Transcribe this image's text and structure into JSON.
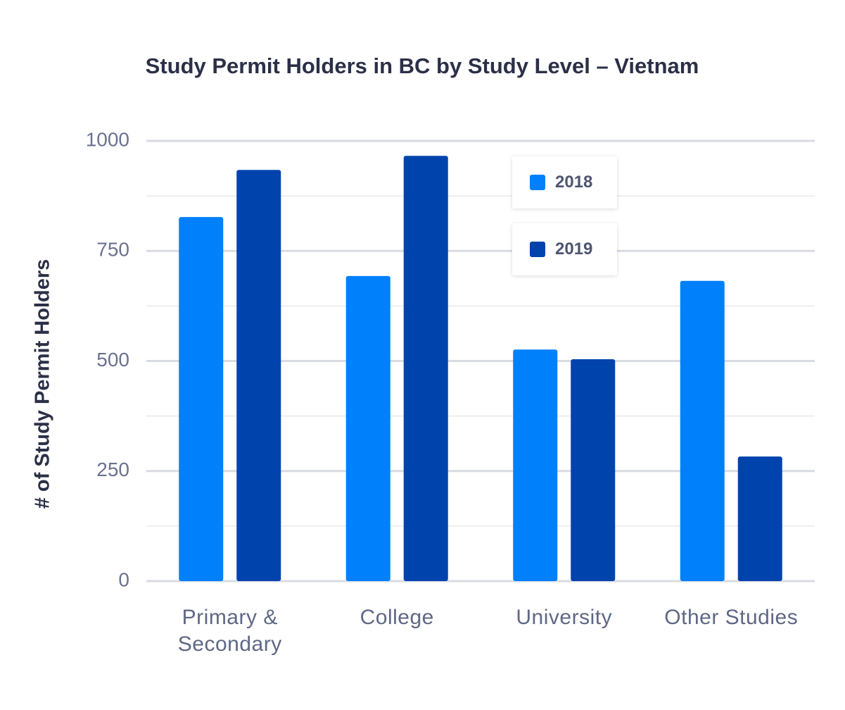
{
  "chart_data": {
    "type": "bar",
    "title": "Study Permit Holders in BC by Study Level – Vietnam",
    "ylabel": "# of Study Permit Holders",
    "categories": [
      "Primary & Secondary",
      "College",
      "University",
      "Other Studies"
    ],
    "series": [
      {
        "name": "2018",
        "color": "#0080fb",
        "values": [
          827,
          693,
          526,
          682
        ]
      },
      {
        "name": "2019",
        "color": "#0043ad",
        "values": [
          934,
          966,
          504,
          283
        ]
      }
    ],
    "ylim": [
      0,
      1000
    ],
    "yticks": [
      0,
      250,
      500,
      750,
      1000
    ],
    "minor_yticks": [
      125,
      375,
      625,
      875
    ],
    "grid": true,
    "legend": "top-right"
  }
}
